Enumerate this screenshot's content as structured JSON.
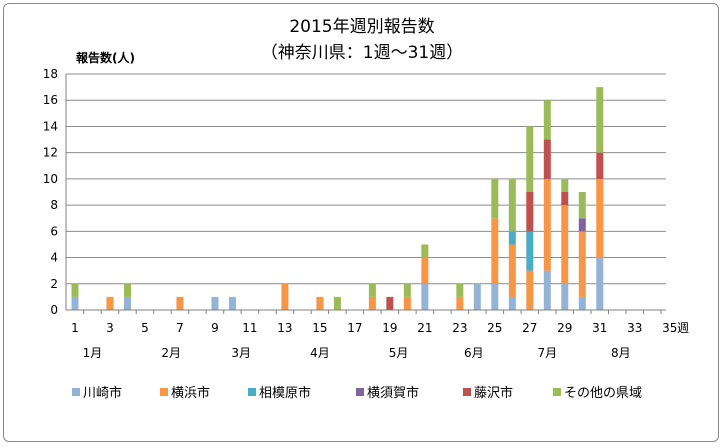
{
  "chart_data": {
    "type": "bar",
    "stacked": true,
    "title": "2015年週別報告数",
    "subtitle": "（神奈川県：1週〜31週）",
    "ylabel": "報告数(人)",
    "xlabel": "週",
    "ylim": [
      0,
      18
    ],
    "yticks": [
      0,
      2,
      4,
      6,
      8,
      10,
      12,
      14,
      16,
      18
    ],
    "xlim": [
      1,
      35
    ],
    "xticks": [
      1,
      3,
      5,
      7,
      9,
      11,
      13,
      15,
      17,
      19,
      21,
      23,
      25,
      27,
      29,
      31,
      33,
      35
    ],
    "grid": true,
    "legend_position": "bottom",
    "weeks": [
      1,
      2,
      3,
      4,
      5,
      6,
      7,
      8,
      9,
      10,
      11,
      12,
      13,
      14,
      15,
      16,
      17,
      18,
      19,
      20,
      21,
      22,
      23,
      24,
      25,
      26,
      27,
      28,
      29,
      30,
      31,
      32,
      33,
      34,
      35
    ],
    "months": [
      {
        "label": "1月",
        "week": 2
      },
      {
        "label": "2月",
        "week": 6.5
      },
      {
        "label": "3月",
        "week": 10.5
      },
      {
        "label": "4月",
        "week": 15
      },
      {
        "label": "5月",
        "week": 19.5
      },
      {
        "label": "6月",
        "week": 23.8
      },
      {
        "label": "7月",
        "week": 28
      },
      {
        "label": "8月",
        "week": 32.2
      }
    ],
    "series": [
      {
        "name": "川崎市",
        "color": "#95b3d7",
        "values": [
          1,
          0,
          0,
          1,
          0,
          0,
          0,
          0,
          1,
          1,
          0,
          0,
          0,
          0,
          0,
          0,
          0,
          0,
          0,
          0,
          2,
          0,
          0,
          2,
          2,
          1,
          0,
          3,
          2,
          1,
          4,
          0,
          0,
          0,
          0
        ]
      },
      {
        "name": "横浜市",
        "color": "#f79646",
        "values": [
          0,
          0,
          1,
          0,
          0,
          0,
          1,
          0,
          0,
          0,
          0,
          0,
          2,
          0,
          1,
          0,
          0,
          1,
          0,
          1,
          2,
          0,
          1,
          0,
          5,
          4,
          3,
          7,
          6,
          5,
          6,
          0,
          0,
          0,
          0
        ]
      },
      {
        "name": "相模原市",
        "color": "#4bacc6",
        "values": [
          0,
          0,
          0,
          0,
          0,
          0,
          0,
          0,
          0,
          0,
          0,
          0,
          0,
          0,
          0,
          0,
          0,
          0,
          0,
          0,
          0,
          0,
          0,
          0,
          0,
          1,
          3,
          0,
          0,
          0,
          0,
          0,
          0,
          0,
          0
        ]
      },
      {
        "name": "横須賀市",
        "color": "#8064a2",
        "values": [
          0,
          0,
          0,
          0,
          0,
          0,
          0,
          0,
          0,
          0,
          0,
          0,
          0,
          0,
          0,
          0,
          0,
          0,
          0,
          0,
          0,
          0,
          0,
          0,
          0,
          0,
          0,
          0,
          0,
          1,
          0,
          0,
          0,
          0,
          0
        ]
      },
      {
        "name": "藤沢市",
        "color": "#c0504d",
        "values": [
          0,
          0,
          0,
          0,
          0,
          0,
          0,
          0,
          0,
          0,
          0,
          0,
          0,
          0,
          0,
          0,
          0,
          0,
          1,
          0,
          0,
          0,
          0,
          0,
          0,
          0,
          3,
          3,
          1,
          0,
          2,
          0,
          0,
          0,
          0
        ]
      },
      {
        "name": "その他の県域",
        "color": "#9bbb59",
        "values": [
          1,
          0,
          0,
          1,
          0,
          0,
          0,
          0,
          0,
          0,
          0,
          0,
          0,
          0,
          0,
          1,
          0,
          1,
          0,
          1,
          1,
          0,
          1,
          0,
          3,
          4,
          5,
          3,
          1,
          2,
          5,
          0,
          0,
          0,
          0
        ]
      }
    ]
  }
}
